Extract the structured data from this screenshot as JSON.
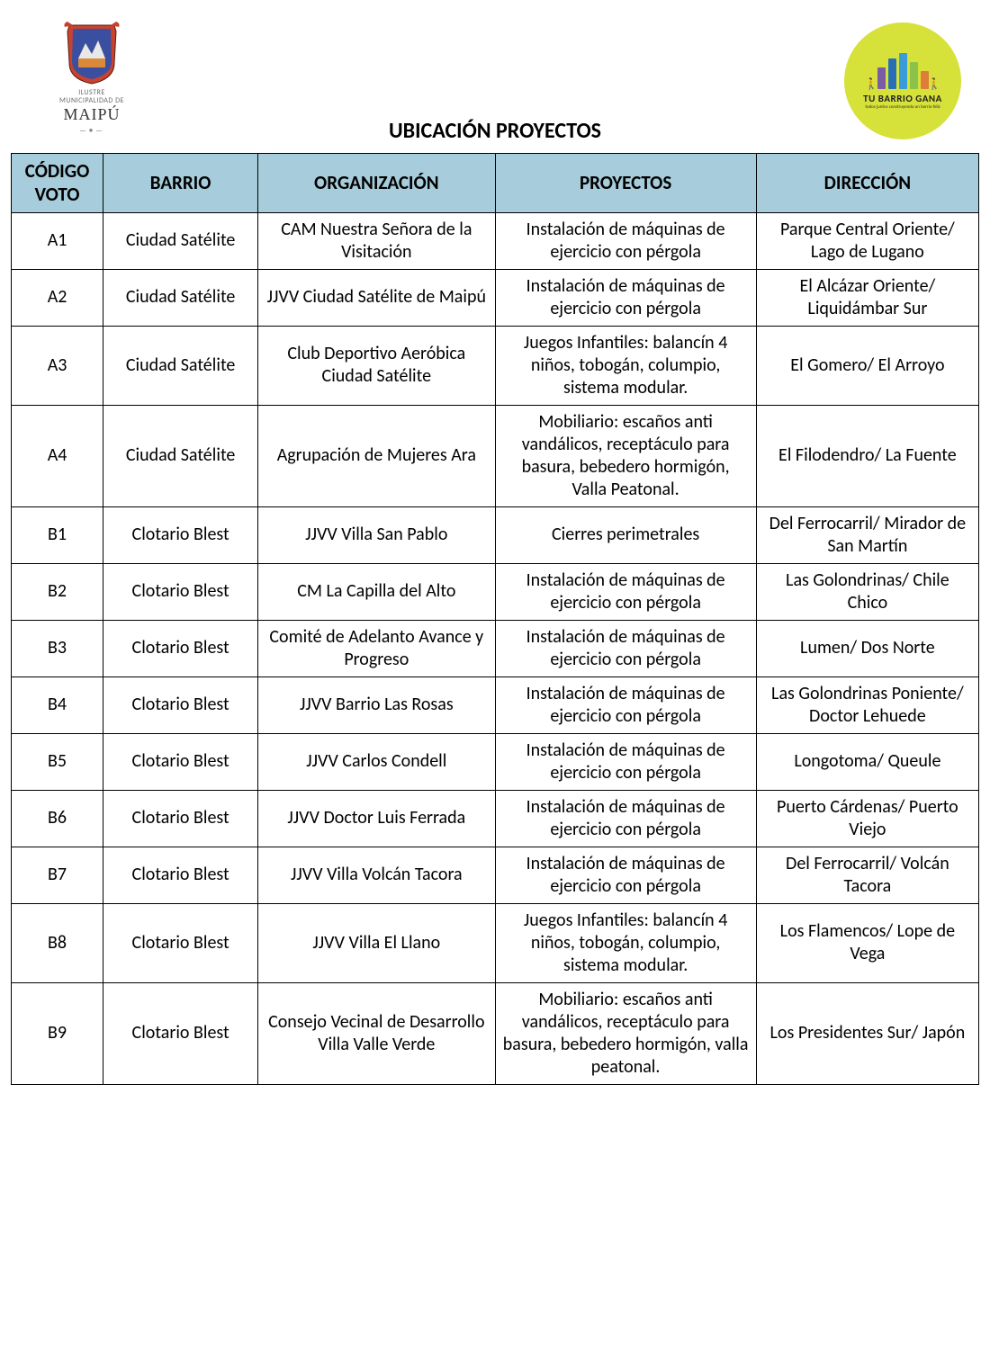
{
  "page": {
    "title": "UBICACIÓN PROYECTOS"
  },
  "logos": {
    "left": {
      "line1": "ILUSTRE",
      "line2": "MUNICIPALIDAD DE",
      "name": "MAIPÚ"
    },
    "right": {
      "brand": "TU BARRIO GANA",
      "tagline": "todos juntos construyendo un barrio feliz",
      "circle_color": "#d6e13a",
      "bar_colors": [
        "#7b5aa6",
        "#2a6fb5",
        "#3a9bd9",
        "#8bc34a",
        "#e07b3a"
      ]
    }
  },
  "table": {
    "header_bg": "#a7cddc",
    "border_color": "#000000",
    "columns": [
      {
        "key": "codigo",
        "label": "CÓDIGO VOTO"
      },
      {
        "key": "barrio",
        "label": "BARRIO"
      },
      {
        "key": "organizacion",
        "label": "ORGANIZACIÓN"
      },
      {
        "key": "proyectos",
        "label": "PROYECTOS"
      },
      {
        "key": "direccion",
        "label": "DIRECCIÓN"
      }
    ],
    "rows": [
      {
        "codigo": "A1",
        "barrio": "Ciudad Satélite",
        "organizacion": "CAM Nuestra Señora de la Visitación",
        "proyectos": "Instalación de máquinas de ejercicio con pérgola",
        "direccion": "Parque Central Oriente/ Lago de Lugano"
      },
      {
        "codigo": "A2",
        "barrio": "Ciudad Satélite",
        "organizacion": "JJVV Ciudad Satélite de Maipú",
        "proyectos": "Instalación de máquinas de ejercicio con pérgola",
        "direccion": "El Alcázar Oriente/ Liquidámbar Sur"
      },
      {
        "codigo": "A3",
        "barrio": "Ciudad Satélite",
        "organizacion": "Club Deportivo Aeróbica Ciudad Satélite",
        "proyectos": "Juegos Infantiles: balancín 4 niños, tobogán, columpio, sistema modular.",
        "direccion": "El Gomero/ El Arroyo"
      },
      {
        "codigo": "A4",
        "barrio": "Ciudad Satélite",
        "organizacion": "Agrupación de Mujeres Ara",
        "proyectos": "Mobiliario: escaños anti vandálicos, receptáculo para basura, bebedero hormigón, Valla Peatonal.",
        "direccion": "El Filodendro/ La Fuente"
      },
      {
        "codigo": "B1",
        "barrio": "Clotario Blest",
        "organizacion": "JJVV Villa San Pablo",
        "proyectos": "Cierres perimetrales",
        "direccion": "Del Ferrocarril/ Mirador de San Martín"
      },
      {
        "codigo": "B2",
        "barrio": "Clotario Blest",
        "organizacion": "CM La Capilla del Alto",
        "proyectos": "Instalación de máquinas de ejercicio con pérgola",
        "direccion": "Las Golondrinas/ Chile Chico"
      },
      {
        "codigo": "B3",
        "barrio": "Clotario Blest",
        "organizacion": "Comité de Adelanto Avance y Progreso",
        "proyectos": "Instalación de máquinas de ejercicio con pérgola",
        "direccion": "Lumen/ Dos Norte"
      },
      {
        "codigo": "B4",
        "barrio": "Clotario Blest",
        "organizacion": "JJVV Barrio Las Rosas",
        "proyectos": "Instalación de máquinas de ejercicio con pérgola",
        "direccion": "Las Golondrinas Poniente/ Doctor Lehuede"
      },
      {
        "codigo": "B5",
        "barrio": "Clotario Blest",
        "organizacion": "JJVV Carlos Condell",
        "proyectos": "Instalación de máquinas de ejercicio con pérgola",
        "direccion": "Longotoma/ Queule"
      },
      {
        "codigo": "B6",
        "barrio": "Clotario Blest",
        "organizacion": "JJVV Doctor Luis Ferrada",
        "proyectos": "Instalación de máquinas de ejercicio con pérgola",
        "direccion": "Puerto Cárdenas/ Puerto Viejo"
      },
      {
        "codigo": "B7",
        "barrio": "Clotario Blest",
        "organizacion": "JJVV Villa Volcán Tacora",
        "proyectos": "Instalación de máquinas de ejercicio con pérgola",
        "direccion": "Del Ferrocarril/ Volcán Tacora"
      },
      {
        "codigo": "B8",
        "barrio": "Clotario Blest",
        "organizacion": "JJVV Villa El Llano",
        "proyectos": "Juegos Infantiles: balancín 4 niños, tobogán, columpio, sistema modular.",
        "direccion": "Los Flamencos/ Lope de Vega"
      },
      {
        "codigo": "B9",
        "barrio": "Clotario Blest",
        "organizacion": "Consejo Vecinal de Desarrollo Villa Valle Verde",
        "proyectos": "Mobiliario: escaños anti vandálicos, receptáculo para basura, bebedero hormigón, valla peatonal.",
        "direccion": "Los Presidentes Sur/ Japón"
      }
    ]
  }
}
